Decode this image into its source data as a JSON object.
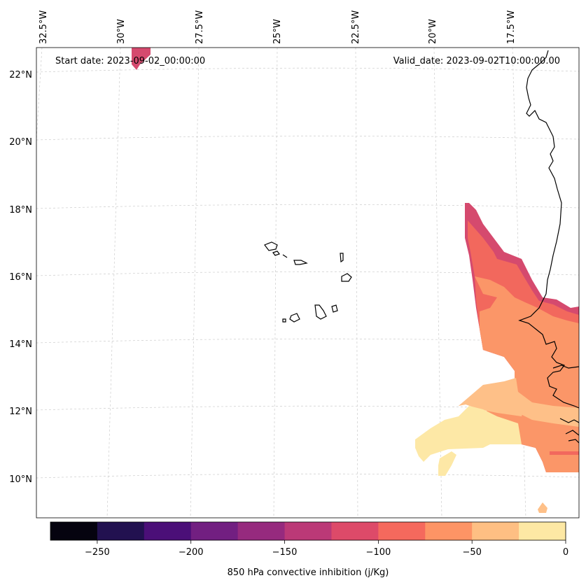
{
  "header": {
    "start_date": "Start date: 2023-09-02_00:00:00",
    "valid_date": "Valid_date: 2023-09-02T10:00:00.00"
  },
  "longitude_labels": [
    "32.5°W",
    "30°W",
    "27.5°W",
    "25°W",
    "22.5°W",
    "20°W",
    "17.5°W"
  ],
  "latitude_labels": [
    "22°N",
    "20°N",
    "18°N",
    "16°N",
    "14°N",
    "12°N",
    "10°N"
  ],
  "colorbar": {
    "title": "850 hPa convective inhibition (j/Kg)",
    "tick_labels": [
      "−250",
      "−200",
      "−150",
      "−100",
      "−50",
      "0"
    ],
    "range": [
      -275,
      0
    ],
    "colors": [
      "#05030f",
      "#221150",
      "#4b0f78",
      "#721f81",
      "#962a7e",
      "#bb3977",
      "#dd4a69",
      "#f5695d",
      "#fd9465",
      "#febf83",
      "#fde8a4"
    ]
  },
  "map_colors": {
    "level_m150": "#d54a6e",
    "level_m100": "#f2685d",
    "level_m75": "#fb9668",
    "level_m50": "#fec088",
    "level_m25": "#fde8a6"
  }
}
